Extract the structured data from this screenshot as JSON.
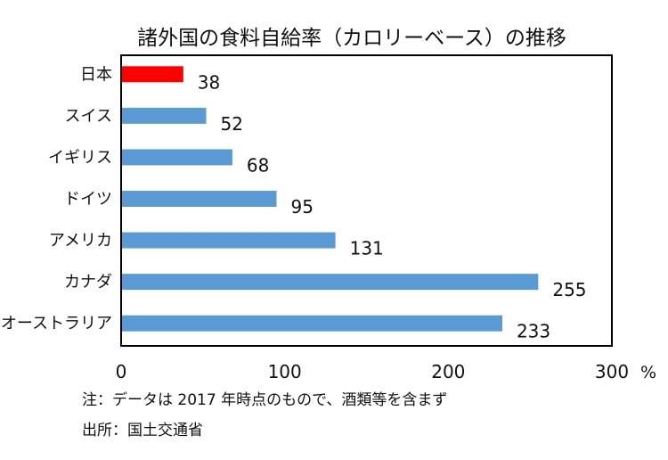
{
  "chart_data": {
    "type": "bar",
    "orientation": "horizontal",
    "title": "諸外国の食料自給率（カロリーベース）の推移",
    "categories": [
      "日本",
      "スイス",
      "イギリス",
      "ドイツ",
      "アメリカ",
      "カナダ",
      "オーストラリア"
    ],
    "values": [
      38,
      52,
      68,
      95,
      131,
      255,
      233
    ],
    "xlim": [
      0,
      300
    ],
    "xticks": [
      "0",
      "100",
      "200",
      "300"
    ],
    "xunit": "%",
    "grid": false,
    "colors": {
      "highlight": "#ff0000",
      "default": "#5b9bd5",
      "frame": "#000000"
    }
  },
  "notes": [
    "注：データは 2017 年時点のもので、酒類等を含まず",
    "出所：国土交通省"
  ]
}
